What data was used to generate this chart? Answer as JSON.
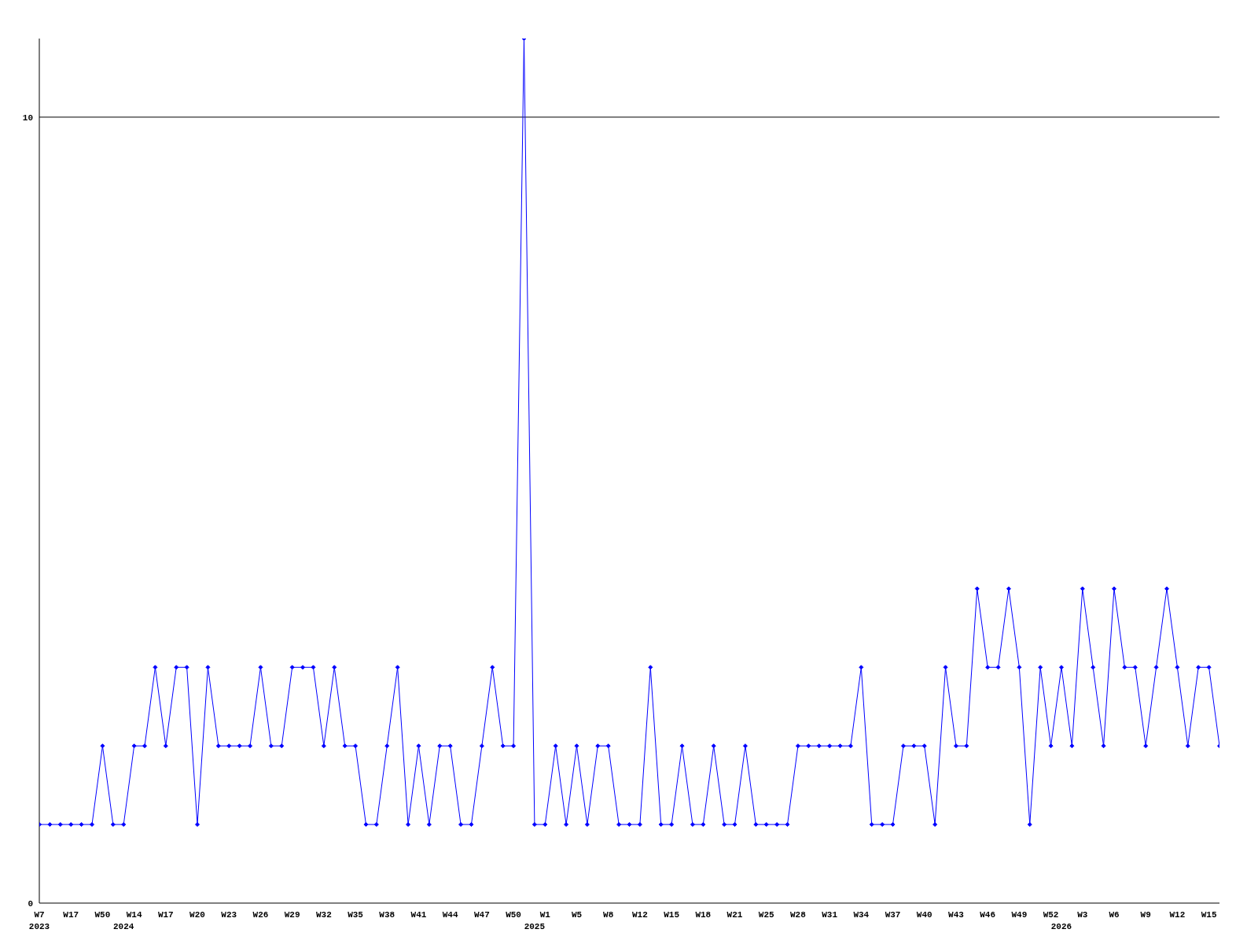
{
  "chart_data": {
    "type": "line",
    "categories": [
      "W7\n2023",
      null,
      null,
      "W17",
      null,
      null,
      "W50",
      null,
      "\n2024",
      "W14",
      null,
      null,
      "W17",
      null,
      null,
      "W20",
      null,
      null,
      "W23",
      null,
      null,
      "W26",
      null,
      null,
      "W29",
      null,
      null,
      "W32",
      null,
      null,
      "W35",
      null,
      null,
      "W38",
      null,
      null,
      "W41",
      null,
      null,
      "W44",
      null,
      null,
      "W47",
      null,
      null,
      "W50",
      null,
      "\n2025",
      "W1",
      null,
      null,
      "W5",
      null,
      null,
      "W8",
      null,
      null,
      "W12",
      null,
      null,
      "W15",
      null,
      null,
      "W18",
      null,
      null,
      "W21",
      null,
      null,
      "W25",
      null,
      null,
      "W28",
      null,
      null,
      "W31",
      null,
      null,
      "W34",
      null,
      null,
      "W37",
      null,
      null,
      "W40",
      null,
      null,
      "W43",
      null,
      null,
      "W46",
      null,
      null,
      "W49",
      null,
      null,
      "W52",
      "\n2026",
      null,
      "W3",
      null,
      null,
      "W6",
      null,
      null,
      "W9",
      null,
      null,
      "W12",
      null,
      null,
      "W15",
      null
    ],
    "series": [
      {
        "color": "#0000ff",
        "values": [
          1,
          1,
          1,
          1,
          1,
          1,
          2,
          1,
          1,
          2,
          2,
          3,
          2,
          3,
          3,
          1,
          3,
          2,
          2,
          2,
          2,
          3,
          2,
          2,
          3,
          3,
          3,
          2,
          3,
          2,
          2,
          1,
          1,
          2,
          3,
          1,
          2,
          1,
          2,
          2,
          1,
          1,
          2,
          3,
          2,
          2,
          11,
          1,
          1,
          2,
          1,
          2,
          1,
          2,
          2,
          1,
          1,
          1,
          3,
          1,
          1,
          2,
          1,
          1,
          2,
          1,
          1,
          2,
          1,
          1,
          1,
          1,
          2,
          2,
          2,
          2,
          2,
          2,
          3,
          1,
          1,
          1,
          2,
          2,
          2,
          1,
          3,
          2,
          2,
          4,
          3,
          3,
          4,
          3,
          1,
          3,
          2,
          3,
          2,
          4,
          3,
          2,
          4,
          3,
          3,
          2,
          3,
          4,
          3,
          2,
          3,
          3,
          2
        ]
      }
    ],
    "ylim": [
      0,
      11
    ],
    "yticks": [
      0,
      10
    ],
    "grid": "y",
    "marker": "diamond",
    "line_style": "solid"
  }
}
